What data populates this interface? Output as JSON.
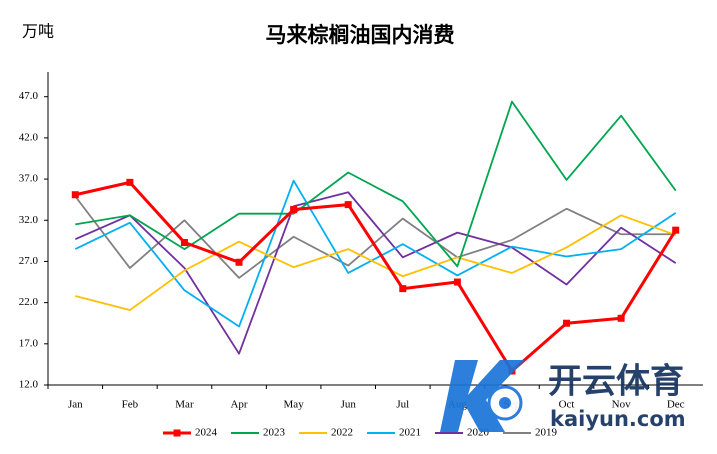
{
  "chart_data": {
    "type": "line",
    "title": "马来棕榈油国内消费",
    "y_unit": "万吨",
    "categories": [
      "Jan",
      "Feb",
      "Mar",
      "Apr",
      "May",
      "Jun",
      "Jul",
      "Aug",
      "Sep",
      "Oct",
      "Nov",
      "Dec"
    ],
    "series": [
      {
        "name": "2024",
        "color": "#ff0000",
        "marker": "square",
        "values": [
          35.1,
          36.6,
          29.3,
          26.9,
          33.3,
          33.9,
          23.7,
          24.5,
          13.7,
          19.5,
          20.1,
          30.8
        ]
      },
      {
        "name": "2023",
        "color": "#00a550",
        "values": [
          31.5,
          32.6,
          28.5,
          32.8,
          32.8,
          37.8,
          34.3,
          26.4,
          46.4,
          36.9,
          44.7,
          35.6
        ]
      },
      {
        "name": "2022",
        "color": "#ffc000",
        "values": [
          22.8,
          21.1,
          25.9,
          29.4,
          26.3,
          28.5,
          25.2,
          27.5,
          25.6,
          28.7,
          32.6,
          30.2
        ]
      },
      {
        "name": "2021",
        "color": "#00b0f0",
        "values": [
          28.5,
          31.7,
          23.5,
          19.1,
          36.8,
          25.6,
          29.1,
          25.3,
          28.8,
          27.6,
          28.5,
          32.9
        ]
      },
      {
        "name": "2020",
        "color": "#7030a0",
        "values": [
          29.7,
          32.6,
          26.2,
          15.8,
          33.7,
          35.4,
          27.5,
          30.5,
          28.7,
          24.2,
          31.1,
          26.8
        ]
      },
      {
        "name": "2019",
        "color": "#808080",
        "values": [
          34.9,
          26.2,
          32.0,
          25.0,
          30.0,
          26.5,
          32.2,
          27.5,
          29.6,
          33.4,
          30.3,
          30.3
        ]
      }
    ],
    "ylim": [
      12,
      50
    ],
    "yticks": [
      {
        "value": 12,
        "label": "12.0"
      },
      {
        "value": 17,
        "label": "17.0"
      },
      {
        "value": 22,
        "label": "22.0"
      },
      {
        "value": 27,
        "label": "27.0"
      },
      {
        "value": 32,
        "label": "32.0"
      },
      {
        "value": 37,
        "label": "37.0"
      },
      {
        "value": 42,
        "label": "42.0"
      },
      {
        "value": 47,
        "label": "47.0"
      }
    ],
    "legend": "bottom"
  },
  "watermark": {
    "brand": "开云体育",
    "site": "kaiyun.com"
  }
}
